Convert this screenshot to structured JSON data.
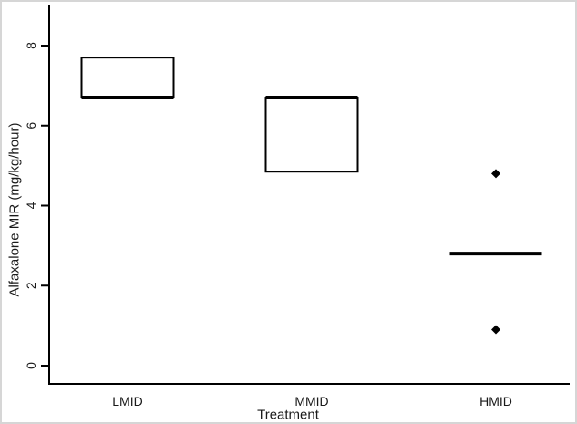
{
  "chart_data": {
    "type": "boxplot",
    "title": "",
    "xlabel": "Treatment",
    "ylabel": "Alfaxalone MIR (mg/kg/hour)",
    "categories": [
      "LMID",
      "MMID",
      "HMID"
    ],
    "y_ticks": [
      0,
      2,
      4,
      6,
      8
    ],
    "ylim": [
      -0.4,
      9.0
    ],
    "grid": false,
    "legend": "none",
    "boxes": [
      {
        "category": "LMID",
        "q1": 6.7,
        "median": 6.7,
        "q3": 7.7,
        "outliers": []
      },
      {
        "category": "MMID",
        "q1": 4.85,
        "median": 6.7,
        "q3": 6.7,
        "outliers": []
      },
      {
        "category": "HMID",
        "q1": null,
        "median": 2.8,
        "q3": null,
        "outliers": [
          4.8,
          0.9
        ]
      }
    ],
    "colors": {
      "stroke": "#000000",
      "box_fill": "#ffffff",
      "background": "#ffffff"
    }
  }
}
